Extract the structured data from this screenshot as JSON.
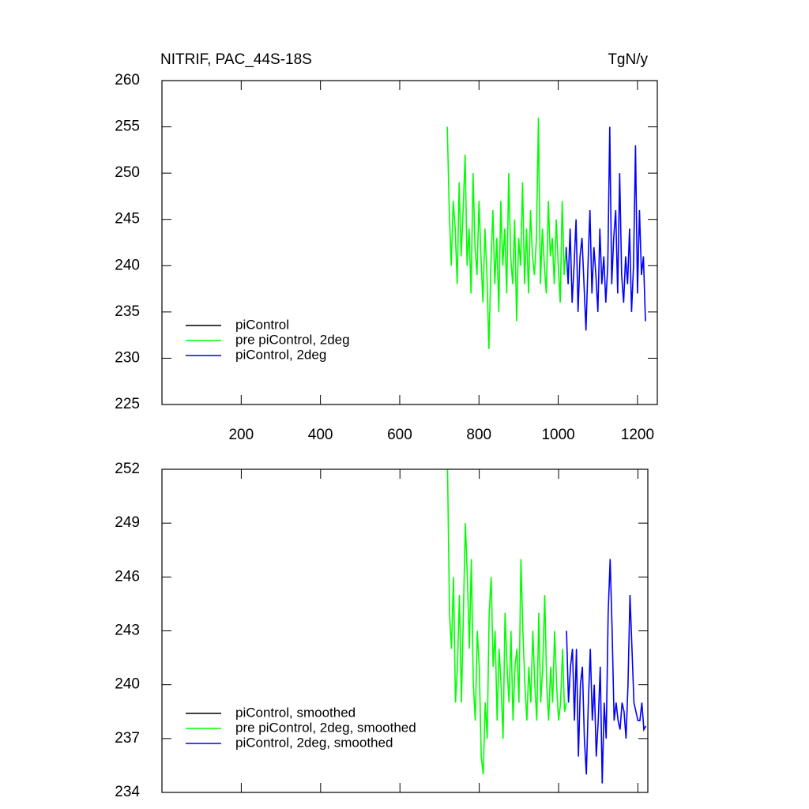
{
  "chart_data": [
    {
      "type": "line",
      "title": "NITRIF, PAC_44S-18S",
      "units": "TgN/y",
      "xlim": [
        0,
        1250
      ],
      "ylim": [
        225,
        260
      ],
      "xticks": [
        200,
        400,
        600,
        800,
        1000,
        1200
      ],
      "yticks": [
        225,
        230,
        235,
        240,
        245,
        250,
        255,
        260
      ],
      "show_xtick_labels": true,
      "legend": "lower left",
      "series": [
        {
          "name": "piControl",
          "color": "#000000",
          "x": [],
          "values": []
        },
        {
          "name": "pre piControl, 2deg",
          "color": "#00ff00",
          "x": [
            720,
            725,
            730,
            735,
            740,
            745,
            750,
            755,
            760,
            765,
            770,
            775,
            780,
            785,
            790,
            795,
            800,
            805,
            810,
            815,
            820,
            825,
            830,
            835,
            840,
            845,
            850,
            855,
            860,
            865,
            870,
            875,
            880,
            885,
            890,
            895,
            900,
            905,
            910,
            915,
            920,
            925,
            930,
            935,
            940,
            945,
            950,
            955,
            960,
            965,
            970,
            975,
            980,
            985,
            990,
            995,
            1000,
            1005,
            1010,
            1015,
            1020
          ],
          "values": [
            255,
            246,
            240,
            247,
            244,
            238,
            249,
            241,
            246,
            252,
            240,
            244,
            237,
            250,
            242,
            239,
            247,
            241,
            236,
            244,
            239,
            231,
            240,
            246,
            238,
            243,
            235,
            247,
            240,
            244,
            237,
            250,
            241,
            238,
            245,
            234,
            243,
            240,
            249,
            238,
            244,
            237,
            246,
            241,
            239,
            243,
            256,
            238,
            244,
            240,
            237,
            247,
            241,
            243,
            238,
            245,
            240,
            236,
            247,
            239,
            242
          ]
        },
        {
          "name": "piControl, 2deg",
          "color": "#0000ff",
          "x": [
            1020,
            1025,
            1030,
            1035,
            1040,
            1045,
            1050,
            1055,
            1060,
            1065,
            1070,
            1075,
            1080,
            1085,
            1090,
            1095,
            1100,
            1105,
            1110,
            1115,
            1120,
            1125,
            1130,
            1135,
            1140,
            1145,
            1150,
            1155,
            1160,
            1165,
            1170,
            1175,
            1180,
            1185,
            1190,
            1195,
            1200,
            1205,
            1210,
            1215,
            1220
          ],
          "values": [
            242,
            238,
            244,
            236,
            240,
            245,
            235,
            241,
            243,
            238,
            233,
            240,
            246,
            237,
            242,
            239,
            235,
            244,
            238,
            241,
            236,
            240,
            255,
            238,
            243,
            246,
            237,
            250,
            239,
            236,
            241,
            238,
            244,
            235,
            240,
            253,
            237,
            246,
            239,
            241,
            234
          ]
        }
      ]
    },
    {
      "type": "line",
      "xlim": [
        0,
        1225
      ],
      "ylim": [
        234,
        252
      ],
      "xticks": [
        200,
        400,
        600,
        800,
        1000,
        1200
      ],
      "yticks": [
        234,
        237,
        240,
        243,
        246,
        249,
        252
      ],
      "show_xtick_labels": false,
      "legend": "lower left",
      "series": [
        {
          "name": "piControl, smoothed",
          "color": "#000000",
          "x": [],
          "values": []
        },
        {
          "name": "pre piControl, 2deg, smoothed",
          "color": "#00ff00",
          "x": [
            720,
            725,
            730,
            735,
            740,
            745,
            750,
            755,
            760,
            765,
            770,
            775,
            780,
            785,
            790,
            795,
            800,
            805,
            810,
            815,
            820,
            825,
            830,
            835,
            840,
            845,
            850,
            855,
            860,
            865,
            870,
            875,
            880,
            885,
            890,
            895,
            900,
            905,
            910,
            915,
            920,
            925,
            930,
            935,
            940,
            945,
            950,
            955,
            960,
            965,
            970,
            975,
            980,
            985,
            990,
            995,
            1000,
            1005,
            1010,
            1015,
            1020
          ],
          "values": [
            252,
            244,
            242,
            246,
            239,
            241,
            245,
            239,
            244,
            249,
            246,
            242,
            247,
            240,
            238,
            243,
            241,
            236,
            235,
            239,
            237,
            244,
            246,
            241,
            243,
            238,
            242,
            240,
            237,
            244,
            241,
            239,
            243,
            238,
            241,
            242,
            239,
            247,
            243,
            240,
            238,
            241,
            239,
            243,
            240,
            238,
            244,
            239,
            241,
            245,
            240,
            238,
            241,
            239,
            243,
            240,
            238,
            239,
            242,
            238.5,
            239
          ]
        },
        {
          "name": "piControl, 2deg, smoothed",
          "color": "#0000ff",
          "x": [
            1020,
            1025,
            1030,
            1035,
            1040,
            1045,
            1050,
            1055,
            1060,
            1065,
            1070,
            1075,
            1080,
            1085,
            1090,
            1095,
            1100,
            1105,
            1110,
            1115,
            1120,
            1125,
            1130,
            1135,
            1140,
            1145,
            1150,
            1155,
            1160,
            1165,
            1170,
            1175,
            1180,
            1185,
            1190,
            1195,
            1200,
            1205,
            1210,
            1215,
            1220
          ],
          "values": [
            243,
            239,
            241,
            242,
            238,
            242,
            236,
            240,
            241,
            237,
            235,
            239,
            242,
            238,
            240,
            236,
            238,
            241,
            234.5,
            239,
            237,
            244,
            247,
            243,
            238,
            239,
            238,
            237.5,
            239,
            238.5,
            237,
            240,
            245,
            242,
            239,
            238.5,
            238,
            238,
            239,
            237.5,
            237.7
          ]
        }
      ]
    }
  ]
}
